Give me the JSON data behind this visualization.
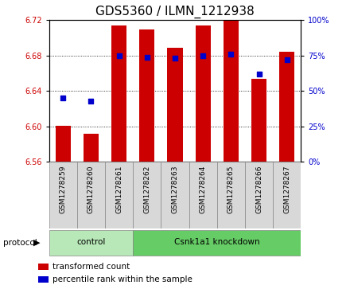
{
  "title": "GDS5360 / ILMN_1212938",
  "samples": [
    "GSM1278259",
    "GSM1278260",
    "GSM1278261",
    "GSM1278262",
    "GSM1278263",
    "GSM1278264",
    "GSM1278265",
    "GSM1278266",
    "GSM1278267"
  ],
  "transformed_count": [
    6.601,
    6.592,
    6.714,
    6.71,
    6.689,
    6.714,
    6.72,
    6.654,
    6.684
  ],
  "percentile_rank": [
    45,
    43,
    75,
    74,
    73,
    75,
    76,
    62,
    72
  ],
  "ylim_left": [
    6.56,
    6.72
  ],
  "ylim_right": [
    0,
    100
  ],
  "yticks_left": [
    6.56,
    6.6,
    6.64,
    6.68,
    6.72
  ],
  "yticks_right": [
    0,
    25,
    50,
    75,
    100
  ],
  "protocol_groups": [
    {
      "label": "control",
      "start": 0,
      "end": 3,
      "color": "#aaddaa"
    },
    {
      "label": "Csnk1a1 knockdown",
      "start": 3,
      "end": 9,
      "color": "#55cc55"
    }
  ],
  "bar_color": "#cc0000",
  "dot_color": "#0000cc",
  "bar_width": 0.55,
  "bg_color": "#ffffff",
  "label_color_left": "#cc0000",
  "label_color_right": "#0000cc",
  "protocol_label": "protocol",
  "legend_items": [
    {
      "label": "transformed count",
      "color": "#cc0000"
    },
    {
      "label": "percentile rank within the sample",
      "color": "#0000cc"
    }
  ],
  "tick_label_fontsize": 7,
  "title_fontsize": 11
}
